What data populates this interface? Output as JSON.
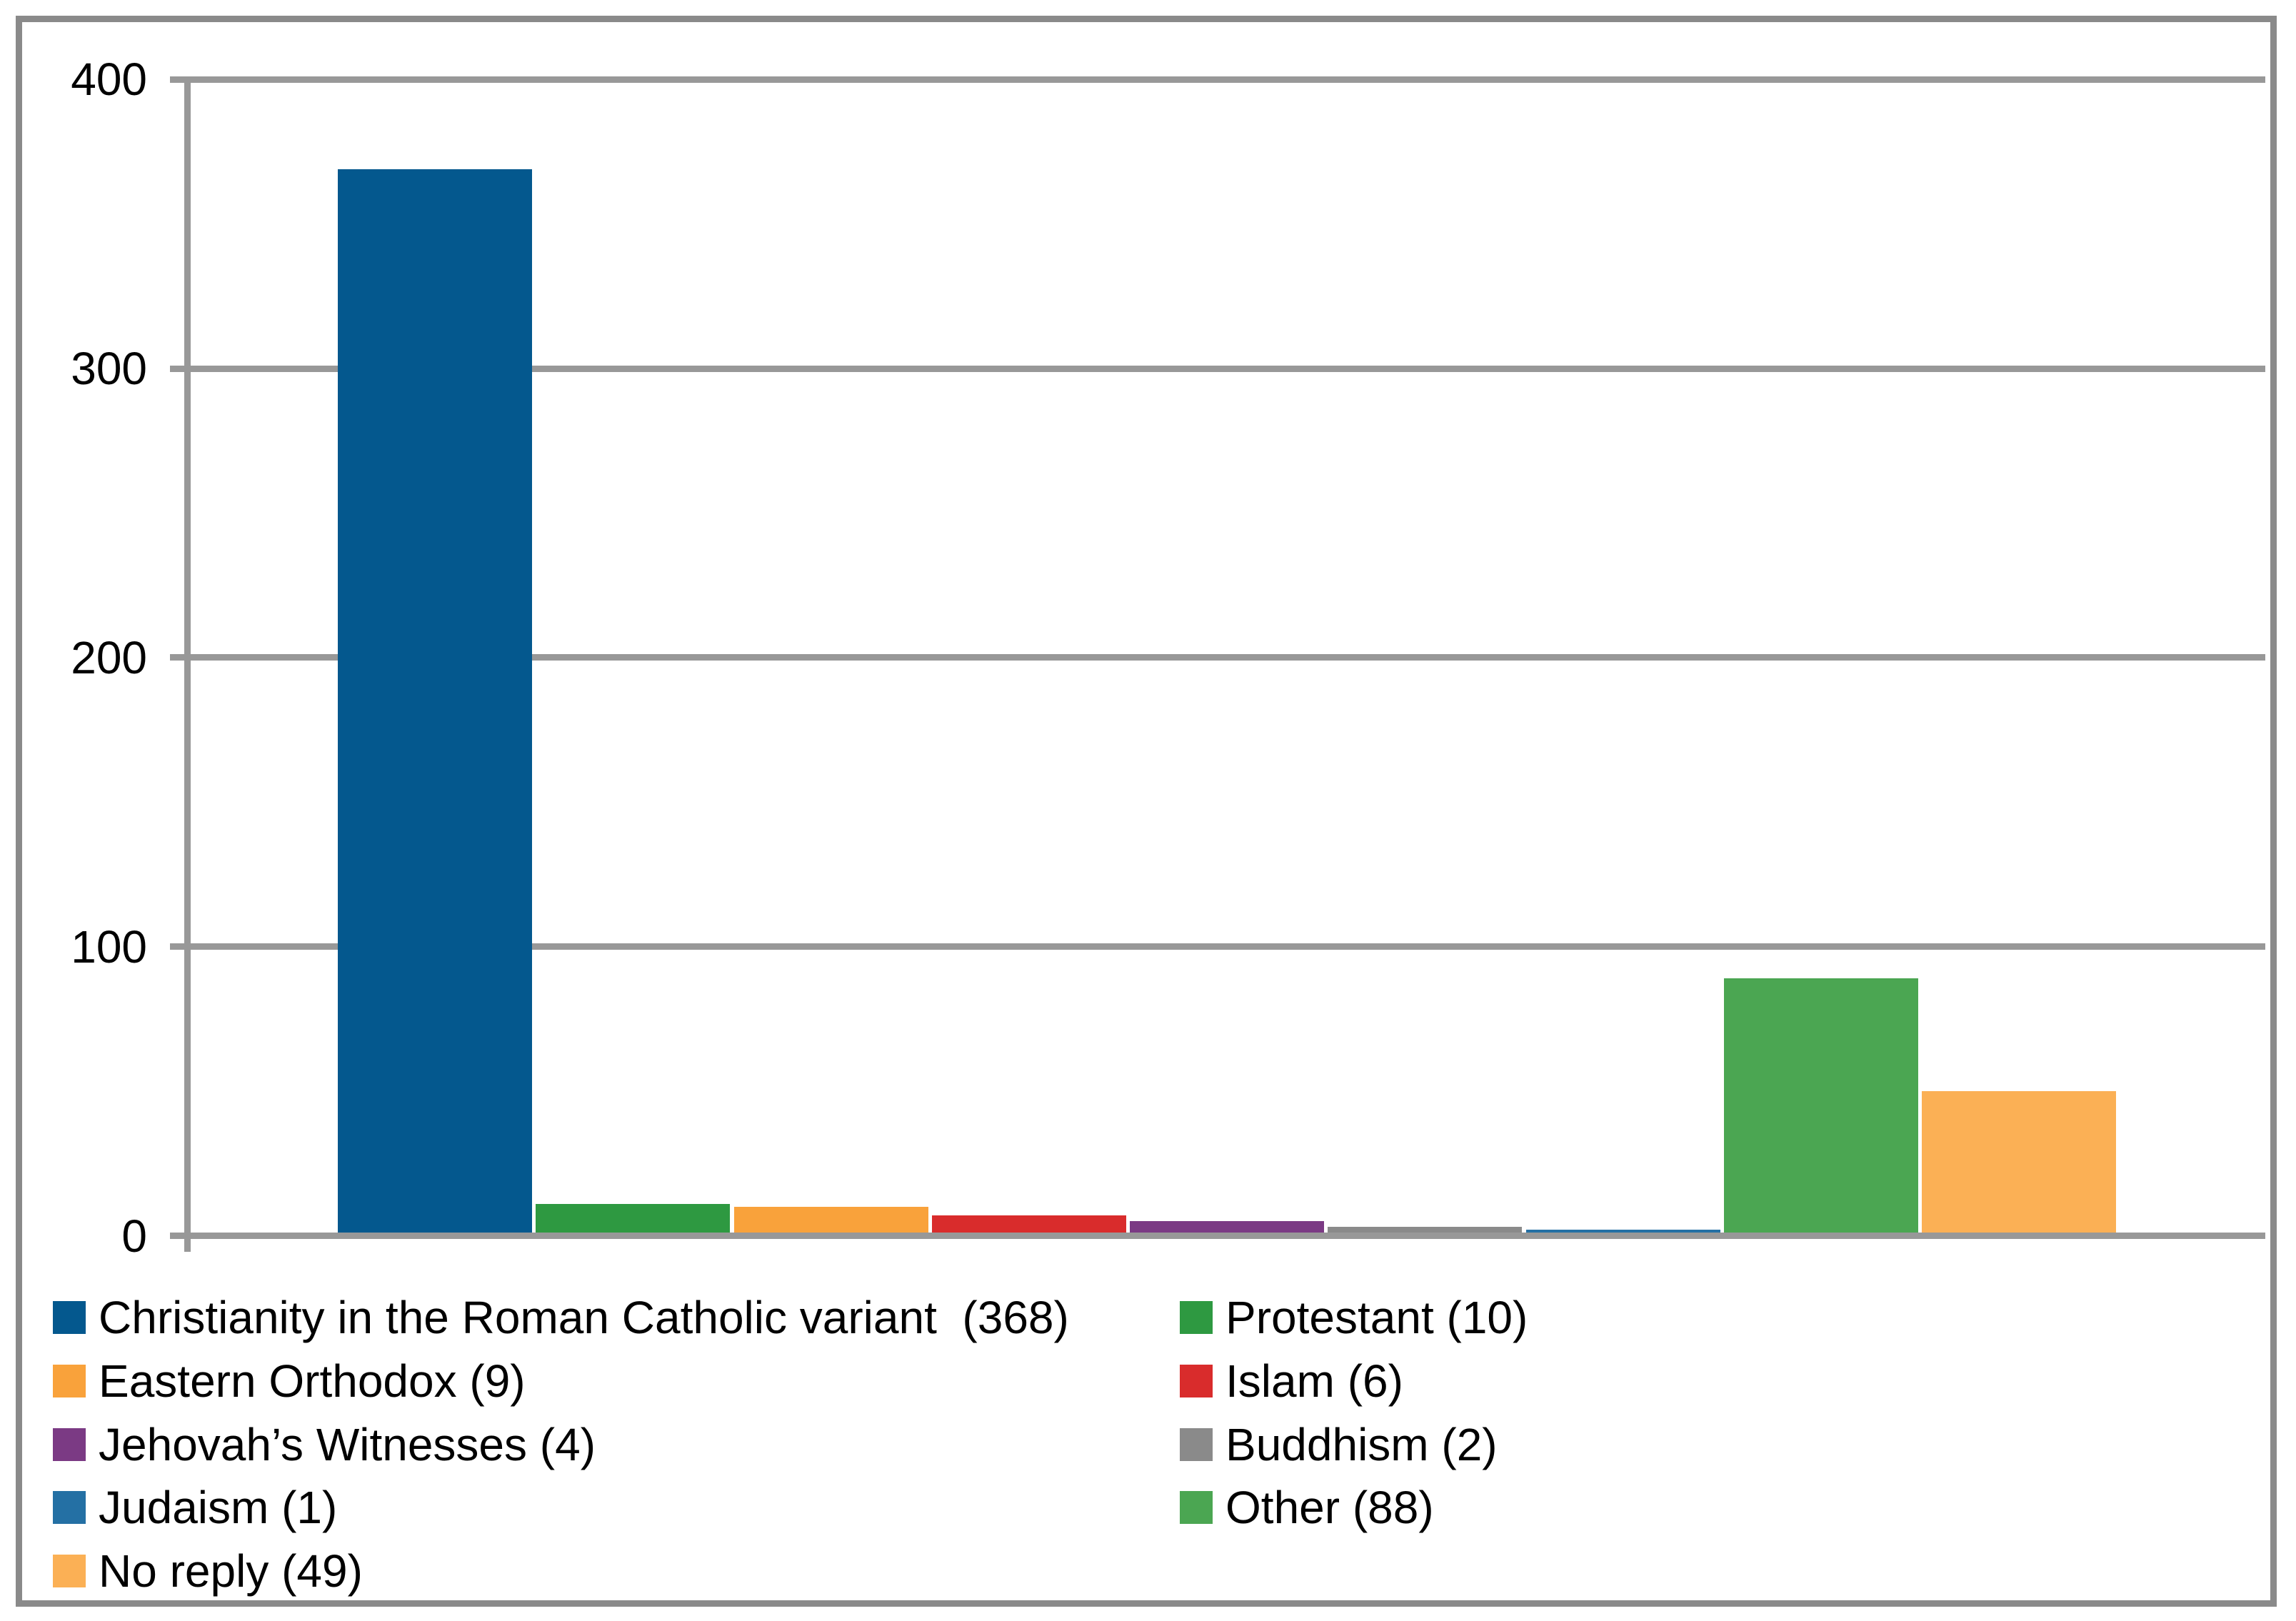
{
  "chart_data": {
    "type": "bar",
    "title": "",
    "categories": [
      "Christianity in the Roman Catholic variant",
      "Protestant",
      "Eastern Orthodox",
      "Islam",
      "Jehovah’s Witnesses",
      "Buddhism",
      "Judaism",
      "Other",
      "No reply"
    ],
    "values": [
      368,
      10,
      9,
      6,
      4,
      2,
      1,
      88,
      49
    ],
    "bar_colors": [
      "#04588E",
      "#2E9941",
      "#F9A23B",
      "#D92C2C",
      "#7B3A84",
      "#8A8A8A",
      "#2470A4",
      "#4BA652",
      "#FBB055"
    ],
    "legend_labels": [
      "Christianity in the Roman Catholic variant  (368)",
      "Protestant (10)",
      "Eastern Orthodox (9)",
      "Islam (6)",
      "Jehovah’s Witnesses (4)",
      "Buddhism (2)",
      "Judaism (1)",
      "Other (88)",
      "No reply (49)"
    ],
    "xlabel": "",
    "ylabel": "",
    "ylim": [
      0,
      400
    ],
    "yticks": [
      400,
      300,
      200,
      100,
      0
    ],
    "ytick_labels": [
      "400",
      "300",
      "200",
      "100",
      "0"
    ],
    "grid": true,
    "legend_position": "bottom-two-columns",
    "axis_color": "#989898",
    "frame_color": "#8A8A8A",
    "buddhism_bar_color": "#8A8A8A",
    "text_color": "#000000",
    "background_color": "#FFFFFF"
  }
}
